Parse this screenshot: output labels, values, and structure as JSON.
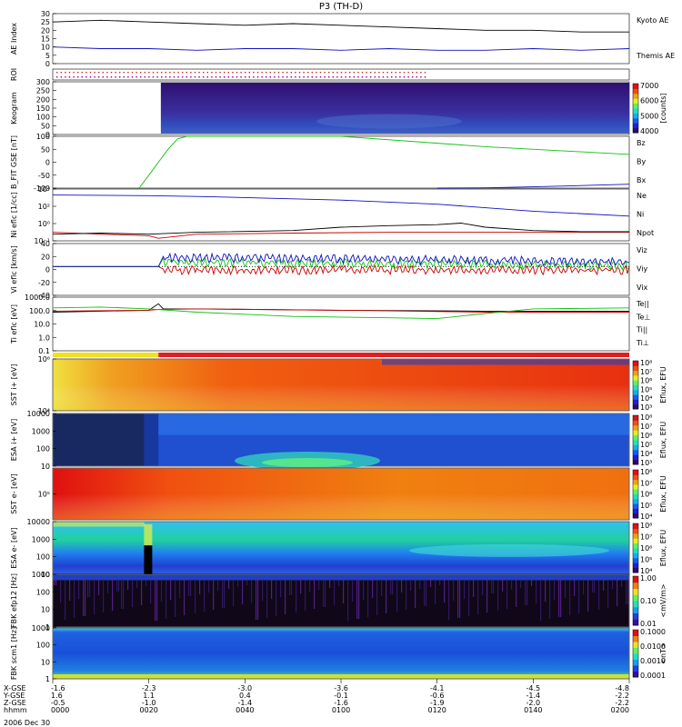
{
  "title": "P3 (TH-D)",
  "date_label": "2006 Dec 30",
  "colors": {
    "kyoto": "#000000",
    "themis": "#1010c0",
    "bz": "#cc0000",
    "by": "#10c010",
    "bx": "#1010c0",
    "red": "#e02020",
    "green": "#20c020",
    "blue": "#1020d0",
    "yellow": "#f0e020"
  },
  "xaxis": {
    "row_labels": [
      "X-GSE",
      "Y-GSE",
      "Z-GSE",
      "hhmm"
    ],
    "ticks": [
      {
        "x": "-1.6",
        "y": "1.6",
        "z": "-0.5",
        "t": "0000"
      },
      {
        "x": "-2.3",
        "y": "1.1",
        "z": "-1.0",
        "t": "0020"
      },
      {
        "x": "-3.0",
        "y": "0.4",
        "z": "-1.4",
        "t": "0040"
      },
      {
        "x": "-3.6",
        "y": "-0.1",
        "z": "-1.6",
        "t": "0100"
      },
      {
        "x": "-4.1",
        "y": "-0.6",
        "z": "-1.9",
        "t": "0120"
      },
      {
        "x": "-4.5",
        "y": "-1.4",
        "z": "-2.0",
        "t": "0140"
      },
      {
        "x": "-4.8",
        "y": "-2.2",
        "z": "-2.2",
        "t": "0200"
      }
    ]
  },
  "chart_data": [
    {
      "type": "line",
      "panel": "ae",
      "ylabel": "AE Index",
      "ylim": [
        0,
        30
      ],
      "yticks": [
        "0",
        "5",
        "10",
        "15",
        "20",
        "25",
        "30"
      ],
      "xlim": [
        0,
        120
      ],
      "series": [
        {
          "name": "Kyoto AE",
          "color": "#000000",
          "x": [
            0,
            10,
            20,
            30,
            40,
            50,
            60,
            70,
            80,
            90,
            100,
            110,
            120
          ],
          "values": [
            25,
            26,
            25,
            24,
            23,
            24,
            23,
            22,
            21,
            20,
            20,
            19,
            19
          ]
        },
        {
          "name": "Themis AE",
          "color": "#1010c0",
          "x": [
            0,
            10,
            20,
            30,
            40,
            50,
            60,
            70,
            80,
            90,
            100,
            110,
            120
          ],
          "values": [
            10,
            9,
            9,
            8,
            9,
            9,
            8,
            9,
            8,
            8,
            9,
            8,
            9
          ]
        }
      ]
    },
    {
      "type": "heatmap",
      "panel": "roi",
      "ylabel": "ROI"
    },
    {
      "type": "heatmap",
      "panel": "keogram",
      "ylabel": "Keogram",
      "yticks": [
        "0",
        "50",
        "100",
        "150",
        "200",
        "250",
        "300"
      ],
      "ylim": [
        0,
        300
      ],
      "colorbar_label": "[counts]",
      "colorbar_ticks": [
        "4000",
        "5000",
        "6000",
        "7000"
      ],
      "data_start": 22.5
    },
    {
      "type": "line",
      "panel": "bfield",
      "ylabel": "B_FIT GSE [nT]",
      "ylim": [
        -100,
        100
      ],
      "yticks": [
        "-100",
        "-50",
        "0",
        "50",
        "100"
      ],
      "xlim": [
        0,
        120
      ],
      "series": [
        {
          "name": "Bz",
          "color": "#cc0000",
          "x": [],
          "values": []
        },
        {
          "name": "By",
          "color": "#10c010",
          "x": [
            18,
            20,
            22,
            24,
            26,
            28,
            30,
            60,
            90,
            120
          ],
          "values": [
            -100,
            -50,
            0,
            50,
            90,
            100,
            100,
            100,
            60,
            30
          ]
        },
        {
          "name": "Bx",
          "color": "#1010c0",
          "x": [
            80,
            90,
            100,
            110,
            120
          ],
          "values": [
            -100,
            -99,
            -95,
            -90,
            -85
          ]
        }
      ]
    },
    {
      "type": "line",
      "panel": "density",
      "ylabel": "Ni eflc [1/cc]",
      "yscale": "log",
      "yticks": [
        "10⁻¹",
        "10⁰",
        "10²",
        "10⁴"
      ],
      "xlim": [
        0,
        120
      ],
      "series": [
        {
          "name": "Ne",
          "color": "#cc0000",
          "x": [
            0,
            10,
            20,
            22,
            30,
            50,
            70,
            90,
            110,
            120
          ],
          "values": [
            0.5,
            0.3,
            0.2,
            0.1,
            0.3,
            0.4,
            0.5,
            0.5,
            0.5,
            0.5
          ]
        },
        {
          "name": "Ni",
          "color": "#000000",
          "x": [
            0,
            10,
            20,
            30,
            50,
            60,
            70,
            80,
            85,
            90,
            100,
            110,
            120
          ],
          "values": [
            0.3,
            0.4,
            0.3,
            0.5,
            0.8,
            2,
            3,
            4,
            6,
            2,
            0.8,
            0.6,
            0.6
          ]
        },
        {
          "name": "Npot",
          "color": "#1010c0",
          "x": [
            0,
            10,
            20,
            30,
            40,
            60,
            80,
            100,
            120
          ],
          "values": [
            12000,
            11000,
            10000,
            8000,
            6000,
            3000,
            1000,
            150,
            40
          ]
        }
      ]
    },
    {
      "type": "line",
      "panel": "velocity",
      "ylabel": "Vi eflc [km/s]",
      "ylim": [
        -50,
        40
      ],
      "yticks": [
        "-40",
        "-20",
        "0",
        "20",
        "40"
      ],
      "xlim": [
        0,
        120
      ],
      "series": [
        {
          "name": "Viz",
          "color": "#cc0000",
          "x": [
            0,
            22,
            23,
            120
          ],
          "values": [
            0,
            0,
            0,
            0
          ]
        },
        {
          "name": "Viy",
          "color": "#10c010",
          "x": [
            0,
            22,
            23,
            120
          ],
          "values": [
            0,
            0,
            8,
            2
          ]
        },
        {
          "name": "Vix",
          "color": "#1010c0",
          "x": [
            0,
            22,
            23,
            120
          ],
          "values": [
            0,
            0,
            12,
            4
          ]
        }
      ]
    },
    {
      "type": "line",
      "panel": "temperature",
      "ylabel": "Ti eflc [eV]",
      "yscale": "log",
      "yticks": [
        "0.1",
        "1.0",
        "10.0",
        "100.0",
        "1000.0"
      ],
      "xlim": [
        0,
        120
      ],
      "series": [
        {
          "name": "Te||",
          "color": "#000000",
          "x": [
            0,
            20,
            22,
            23,
            30,
            60,
            90,
            120
          ],
          "values": [
            200,
            300,
            1200,
            400,
            400,
            300,
            250,
            250
          ]
        },
        {
          "name": "Te⊥",
          "color": "#cc0000",
          "x": [
            0,
            20,
            22,
            30,
            60,
            90,
            120
          ],
          "values": [
            250,
            300,
            350,
            400,
            300,
            200,
            200
          ]
        },
        {
          "name": "Ti||",
          "color": "#10c010",
          "x": [
            0,
            10,
            20,
            30,
            50,
            70,
            80,
            90,
            100,
            120
          ],
          "values": [
            500,
            600,
            400,
            200,
            80,
            60,
            50,
            150,
            400,
            500
          ]
        },
        {
          "name": "Ti⊥",
          "color": "#1010c0",
          "x": [],
          "values": []
        }
      ]
    },
    {
      "type": "heatmap",
      "panel": "sst_ion",
      "ylabel": "SST i+ [eV]",
      "yticks": [
        "10⁴",
        "10⁶"
      ],
      "colorbar_label": "Eflux, EFU",
      "colorbar_ticks": [
        "10³",
        "10⁴",
        "10⁵",
        "10⁶",
        "10⁷",
        "10⁸"
      ]
    },
    {
      "type": "heatmap",
      "panel": "esa_ion",
      "ylabel": "ESA i+ [eV]",
      "yticks": [
        "10",
        "100",
        "1000",
        "10000"
      ],
      "colorbar_label": "Eflux, EFU",
      "colorbar_ticks": [
        "10³",
        "10⁴",
        "10⁵",
        "10⁶",
        "10⁷",
        "10⁸"
      ]
    },
    {
      "type": "heatmap",
      "panel": "sst_elec",
      "ylabel": "SST e- [eV]",
      "yticks": [
        "10⁵"
      ],
      "colorbar_label": "Eflux, EFU",
      "colorbar_ticks": [
        "10⁴",
        "10⁵",
        "10⁶",
        "10⁷",
        "10⁸"
      ]
    },
    {
      "type": "heatmap",
      "panel": "esa_elec",
      "ylabel": "ESA e- [eV]",
      "yticks": [
        "10",
        "100",
        "1000",
        "10000"
      ],
      "colorbar_label": "Eflux, EFU",
      "colorbar_ticks": [
        "10⁴",
        "10⁵",
        "10⁶",
        "10⁷",
        "10⁸"
      ]
    },
    {
      "type": "heatmap",
      "panel": "fbk_e",
      "ylabel": "FBK efp12 [Hz]",
      "yticks": [
        "1",
        "10",
        "100",
        "1000"
      ],
      "colorbar_label": "<mV/m>",
      "colorbar_ticks": [
        "0.01",
        "0.10",
        "1.00"
      ]
    },
    {
      "type": "heatmap",
      "panel": "fbk_b",
      "ylabel": "FBK scm1 [Hz]",
      "yticks": [
        "1",
        "10",
        "100",
        "1000"
      ],
      "colorbar_label": "<nT>",
      "colorbar_ticks": [
        "0.0001",
        "0.0010",
        "0.0100",
        "0.1000"
      ]
    }
  ]
}
